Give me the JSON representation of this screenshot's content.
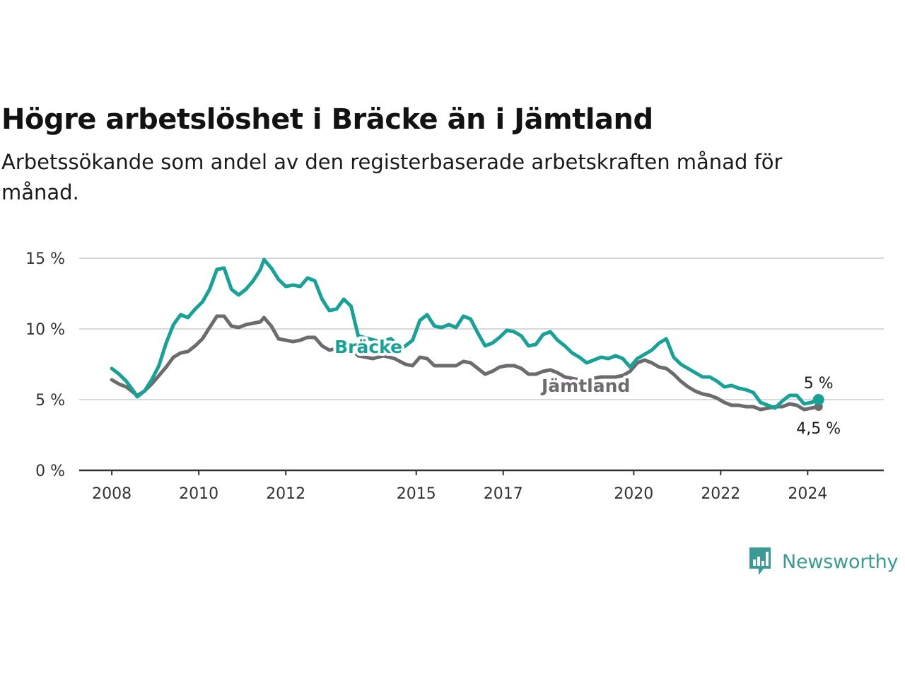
{
  "title": "Högre arbetslöshet i Bräcke än i Jämtland",
  "subtitle": "Arbetssökande som andel av den registerbaserade arbetskraften månad för månad.",
  "brand": {
    "name": "Newsworthy",
    "icon": "newsworthy-logo-icon",
    "color": "#3b9a93"
  },
  "chart_data": {
    "type": "line",
    "title": "Högre arbetslöshet i Bräcke än i Jämtland",
    "subtitle": "Arbetssökande som andel av den registerbaserade arbetskraften månad för månad.",
    "xlabel": "",
    "ylabel": "",
    "x_ticks": [
      "2008",
      "2010",
      "2012",
      "2015",
      "2017",
      "2020",
      "2022",
      "2024"
    ],
    "y_ticks": [
      "0 %",
      "5 %",
      "10 %",
      "15 %"
    ],
    "ylim": [
      0,
      15
    ],
    "xlim": [
      "2007-04",
      "2025-10"
    ],
    "grid": true,
    "legend": "direct labels on lines",
    "series": [
      {
        "name": "Bräcke",
        "color": "#18a197",
        "end_label": "5 %",
        "points": [
          [
            "2008-01",
            7.2
          ],
          [
            "2008-03",
            6.8
          ],
          [
            "2008-05",
            6.3
          ],
          [
            "2008-07",
            5.6
          ],
          [
            "2008-08",
            5.2
          ],
          [
            "2008-10",
            5.6
          ],
          [
            "2008-12",
            6.4
          ],
          [
            "2009-02",
            7.4
          ],
          [
            "2009-04",
            9.0
          ],
          [
            "2009-06",
            10.3
          ],
          [
            "2009-08",
            11.0
          ],
          [
            "2009-10",
            10.8
          ],
          [
            "2009-12",
            11.4
          ],
          [
            "2010-02",
            11.9
          ],
          [
            "2010-04",
            12.8
          ],
          [
            "2010-06",
            14.2
          ],
          [
            "2010-08",
            14.3
          ],
          [
            "2010-10",
            12.8
          ],
          [
            "2010-12",
            12.4
          ],
          [
            "2011-02",
            12.8
          ],
          [
            "2011-04",
            13.4
          ],
          [
            "2011-06",
            14.2
          ],
          [
            "2011-07",
            14.9
          ],
          [
            "2011-09",
            14.3
          ],
          [
            "2011-11",
            13.5
          ],
          [
            "2012-01",
            13.0
          ],
          [
            "2012-03",
            13.1
          ],
          [
            "2012-05",
            13.0
          ],
          [
            "2012-07",
            13.6
          ],
          [
            "2012-09",
            13.4
          ],
          [
            "2012-11",
            12.1
          ],
          [
            "2013-01",
            11.3
          ],
          [
            "2013-03",
            11.4
          ],
          [
            "2013-05",
            12.1
          ],
          [
            "2013-07",
            11.6
          ],
          [
            "2013-09",
            9.5
          ],
          [
            "2014-03",
            9.1
          ],
          [
            "2014-06",
            9.3
          ],
          [
            "2014-09",
            8.6
          ],
          [
            "2014-12",
            9.2
          ],
          [
            "2015-02",
            10.6
          ],
          [
            "2015-04",
            11.0
          ],
          [
            "2015-06",
            10.2
          ],
          [
            "2015-08",
            10.1
          ],
          [
            "2015-10",
            10.3
          ],
          [
            "2015-12",
            10.1
          ],
          [
            "2016-02",
            10.9
          ],
          [
            "2016-04",
            10.7
          ],
          [
            "2016-06",
            9.7
          ],
          [
            "2016-08",
            8.8
          ],
          [
            "2016-10",
            9.0
          ],
          [
            "2016-12",
            9.4
          ],
          [
            "2017-02",
            9.9
          ],
          [
            "2017-04",
            9.8
          ],
          [
            "2017-06",
            9.5
          ],
          [
            "2017-08",
            8.8
          ],
          [
            "2017-10",
            8.9
          ],
          [
            "2017-12",
            9.6
          ],
          [
            "2018-02",
            9.8
          ],
          [
            "2018-04",
            9.2
          ],
          [
            "2018-06",
            8.8
          ],
          [
            "2018-08",
            8.3
          ],
          [
            "2018-10",
            8.0
          ],
          [
            "2018-12",
            7.6
          ],
          [
            "2019-02",
            7.8
          ],
          [
            "2019-04",
            8.0
          ],
          [
            "2019-06",
            7.9
          ],
          [
            "2019-08",
            8.1
          ],
          [
            "2019-10",
            7.9
          ],
          [
            "2019-12",
            7.3
          ],
          [
            "2020-02",
            7.9
          ],
          [
            "2020-04",
            8.2
          ],
          [
            "2020-06",
            8.5
          ],
          [
            "2020-08",
            9.0
          ],
          [
            "2020-10",
            9.3
          ],
          [
            "2020-12",
            8.0
          ],
          [
            "2021-02",
            7.5
          ],
          [
            "2021-04",
            7.2
          ],
          [
            "2021-06",
            6.9
          ],
          [
            "2021-08",
            6.6
          ],
          [
            "2021-10",
            6.6
          ],
          [
            "2021-12",
            6.3
          ],
          [
            "2022-02",
            5.9
          ],
          [
            "2022-04",
            6.0
          ],
          [
            "2022-06",
            5.8
          ],
          [
            "2022-08",
            5.7
          ],
          [
            "2022-10",
            5.5
          ],
          [
            "2022-12",
            4.8
          ],
          [
            "2023-02",
            4.6
          ],
          [
            "2023-04",
            4.4
          ],
          [
            "2023-06",
            4.9
          ],
          [
            "2023-08",
            5.3
          ],
          [
            "2023-10",
            5.3
          ],
          [
            "2023-12",
            4.7
          ],
          [
            "2024-02",
            4.8
          ],
          [
            "2024-04",
            5.0
          ]
        ]
      },
      {
        "name": "Jämtland",
        "color": "#6e6b6f",
        "end_label": "4,5 %",
        "points": [
          [
            "2008-01",
            6.4
          ],
          [
            "2008-03",
            6.1
          ],
          [
            "2008-05",
            5.9
          ],
          [
            "2008-07",
            5.5
          ],
          [
            "2008-08",
            5.3
          ],
          [
            "2008-10",
            5.6
          ],
          [
            "2008-12",
            6.1
          ],
          [
            "2009-02",
            6.7
          ],
          [
            "2009-04",
            7.3
          ],
          [
            "2009-06",
            8.0
          ],
          [
            "2009-08",
            8.3
          ],
          [
            "2009-10",
            8.4
          ],
          [
            "2009-12",
            8.8
          ],
          [
            "2010-02",
            9.3
          ],
          [
            "2010-04",
            10.1
          ],
          [
            "2010-06",
            10.9
          ],
          [
            "2010-08",
            10.9
          ],
          [
            "2010-10",
            10.2
          ],
          [
            "2010-12",
            10.1
          ],
          [
            "2011-02",
            10.3
          ],
          [
            "2011-04",
            10.4
          ],
          [
            "2011-06",
            10.5
          ],
          [
            "2011-07",
            10.8
          ],
          [
            "2011-09",
            10.2
          ],
          [
            "2011-11",
            9.3
          ],
          [
            "2012-01",
            9.2
          ],
          [
            "2012-03",
            9.1
          ],
          [
            "2012-05",
            9.2
          ],
          [
            "2012-07",
            9.4
          ],
          [
            "2012-09",
            9.4
          ],
          [
            "2012-11",
            8.8
          ],
          [
            "2013-01",
            8.5
          ],
          [
            "2013-03",
            8.6
          ],
          [
            "2013-05",
            8.8
          ],
          [
            "2013-07",
            8.6
          ],
          [
            "2013-09",
            8.1
          ],
          [
            "2014-01",
            7.9
          ],
          [
            "2014-04",
            8.1
          ],
          [
            "2014-07",
            7.9
          ],
          [
            "2014-10",
            7.5
          ],
          [
            "2014-12",
            7.4
          ],
          [
            "2015-02",
            8.0
          ],
          [
            "2015-04",
            7.9
          ],
          [
            "2015-06",
            7.4
          ],
          [
            "2015-08",
            7.4
          ],
          [
            "2015-10",
            7.4
          ],
          [
            "2015-12",
            7.4
          ],
          [
            "2016-02",
            7.7
          ],
          [
            "2016-04",
            7.6
          ],
          [
            "2016-06",
            7.2
          ],
          [
            "2016-08",
            6.8
          ],
          [
            "2016-10",
            7.0
          ],
          [
            "2016-12",
            7.3
          ],
          [
            "2017-02",
            7.4
          ],
          [
            "2017-04",
            7.4
          ],
          [
            "2017-06",
            7.2
          ],
          [
            "2017-08",
            6.8
          ],
          [
            "2017-10",
            6.8
          ],
          [
            "2017-12",
            7.0
          ],
          [
            "2018-02",
            7.1
          ],
          [
            "2018-04",
            6.9
          ],
          [
            "2018-06",
            6.6
          ],
          [
            "2018-08",
            6.5
          ],
          [
            "2018-10",
            6.4
          ],
          [
            "2018-12",
            6.3
          ],
          [
            "2019-02",
            6.5
          ],
          [
            "2019-04",
            6.6
          ],
          [
            "2019-06",
            6.6
          ],
          [
            "2019-08",
            6.6
          ],
          [
            "2019-10",
            6.7
          ],
          [
            "2019-12",
            7.0
          ],
          [
            "2020-02",
            7.6
          ],
          [
            "2020-04",
            7.8
          ],
          [
            "2020-06",
            7.6
          ],
          [
            "2020-08",
            7.3
          ],
          [
            "2020-10",
            7.2
          ],
          [
            "2020-12",
            6.8
          ],
          [
            "2021-02",
            6.3
          ],
          [
            "2021-04",
            5.9
          ],
          [
            "2021-06",
            5.6
          ],
          [
            "2021-08",
            5.4
          ],
          [
            "2021-10",
            5.3
          ],
          [
            "2021-12",
            5.1
          ],
          [
            "2022-02",
            4.8
          ],
          [
            "2022-04",
            4.6
          ],
          [
            "2022-06",
            4.6
          ],
          [
            "2022-08",
            4.5
          ],
          [
            "2022-10",
            4.5
          ],
          [
            "2022-12",
            4.3
          ],
          [
            "2023-02",
            4.4
          ],
          [
            "2023-04",
            4.5
          ],
          [
            "2023-06",
            4.5
          ],
          [
            "2023-08",
            4.7
          ],
          [
            "2023-10",
            4.6
          ],
          [
            "2023-12",
            4.3
          ],
          [
            "2024-02",
            4.4
          ],
          [
            "2024-04",
            4.5
          ]
        ]
      }
    ]
  }
}
